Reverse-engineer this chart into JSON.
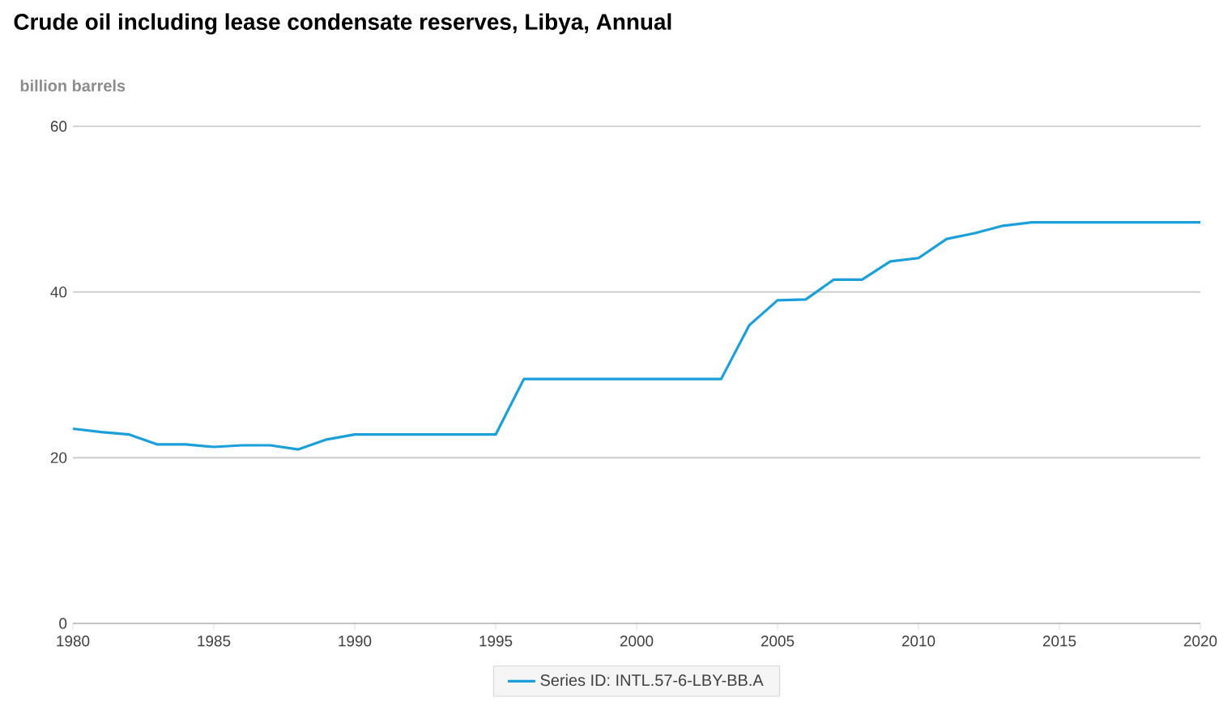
{
  "chart_data": {
    "type": "line",
    "title": "Crude oil including lease condensate reserves, Libya, Annual",
    "ylabel": "billion barrels",
    "x": [
      1980,
      1981,
      1982,
      1983,
      1984,
      1985,
      1986,
      1987,
      1988,
      1989,
      1990,
      1991,
      1992,
      1993,
      1994,
      1995,
      1996,
      1997,
      1998,
      1999,
      2000,
      2001,
      2002,
      2003,
      2004,
      2005,
      2006,
      2007,
      2008,
      2009,
      2010,
      2011,
      2012,
      2013,
      2014,
      2015,
      2016,
      2017,
      2018,
      2019,
      2020
    ],
    "series": [
      {
        "name": "Series ID: INTL.57-6-LBY-BB.A",
        "color": "#1a9fdb",
        "values": [
          23.5,
          23.1,
          22.8,
          21.6,
          21.6,
          21.3,
          21.5,
          21.5,
          21.0,
          22.2,
          22.8,
          22.8,
          22.8,
          22.8,
          22.8,
          22.8,
          29.5,
          29.5,
          29.5,
          29.5,
          29.5,
          29.5,
          29.5,
          29.5,
          36.0,
          39.0,
          39.1,
          41.5,
          41.5,
          43.7,
          44.1,
          46.4,
          47.1,
          48.0,
          48.4,
          48.4,
          48.4,
          48.4,
          48.4,
          48.4,
          48.4
        ]
      }
    ],
    "xlim": [
      1980,
      2020
    ],
    "xticks": [
      1980,
      1985,
      1990,
      1995,
      2000,
      2005,
      2010,
      2015,
      2020
    ],
    "ylim": [
      0,
      60
    ],
    "yticks": [
      0,
      20,
      40,
      60
    ],
    "grid": "y",
    "legend": "bottom",
    "line_style": "solid",
    "marker": "none"
  }
}
